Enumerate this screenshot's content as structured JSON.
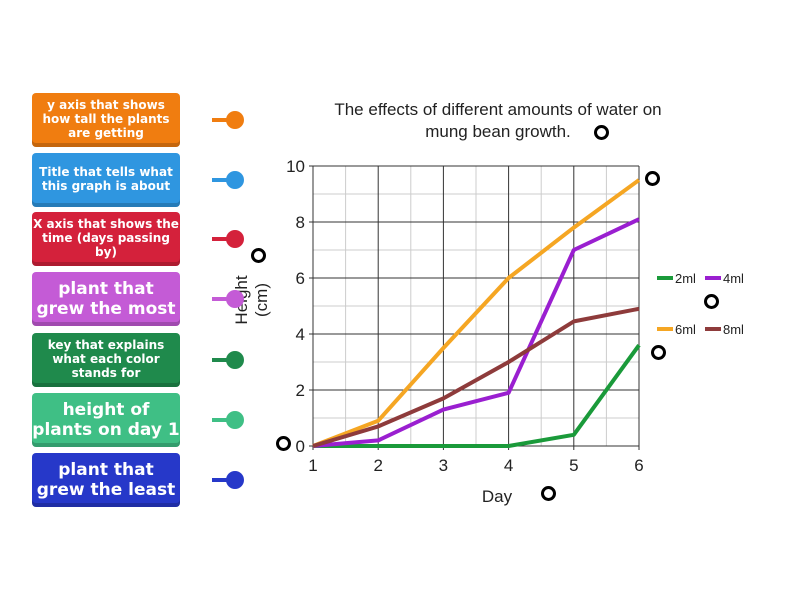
{
  "labels": [
    {
      "text": "y axis that shows how tall the plants are getting",
      "color": "#f07d10",
      "size": "small"
    },
    {
      "text": "Title that tells what this graph is about",
      "color": "#2f96e0",
      "size": "small"
    },
    {
      "text": "X axis that shows the time (days passing by)",
      "color": "#d4213b",
      "size": "small"
    },
    {
      "text": "plant that grew the most",
      "color": "#c45bd6",
      "size": "big"
    },
    {
      "text": "key that explains what each color stands for",
      "color": "#1f8a4c",
      "size": "small"
    },
    {
      "text": "height of plants on day 1",
      "color": "#3fbf85",
      "size": "big"
    },
    {
      "text": "plant that grew the least",
      "color": "#2638c9",
      "size": "big"
    }
  ],
  "chart_data": {
    "type": "line",
    "title": "The effects of different amounts of water on mung bean growth.",
    "title_lines": [
      "The effects of different amounts of water on",
      "mung bean growth."
    ],
    "xlabel": "Day",
    "ylabel_lines": [
      "Height",
      "(cm)"
    ],
    "x": [
      1,
      2,
      3,
      4,
      5,
      6
    ],
    "xlim": [
      1,
      6
    ],
    "ylim": [
      0,
      10
    ],
    "yticks": [
      0,
      2,
      4,
      6,
      8,
      10
    ],
    "grid": true,
    "legend_position": "right",
    "series": [
      {
        "name": "2ml",
        "color": "#1a9a3a",
        "values": [
          0,
          0,
          0,
          0,
          0.4,
          3.6
        ]
      },
      {
        "name": "4ml",
        "color": "#9a1fd0",
        "values": [
          0,
          0.2,
          1.3,
          1.9,
          7.0,
          8.1
        ]
      },
      {
        "name": "6ml",
        "color": "#f5a623",
        "values": [
          0,
          0.9,
          3.5,
          6.0,
          7.8,
          9.5
        ]
      },
      {
        "name": "8ml",
        "color": "#8e3b3b",
        "values": [
          0,
          0.7,
          1.7,
          3.0,
          4.45,
          4.9
        ]
      }
    ]
  }
}
